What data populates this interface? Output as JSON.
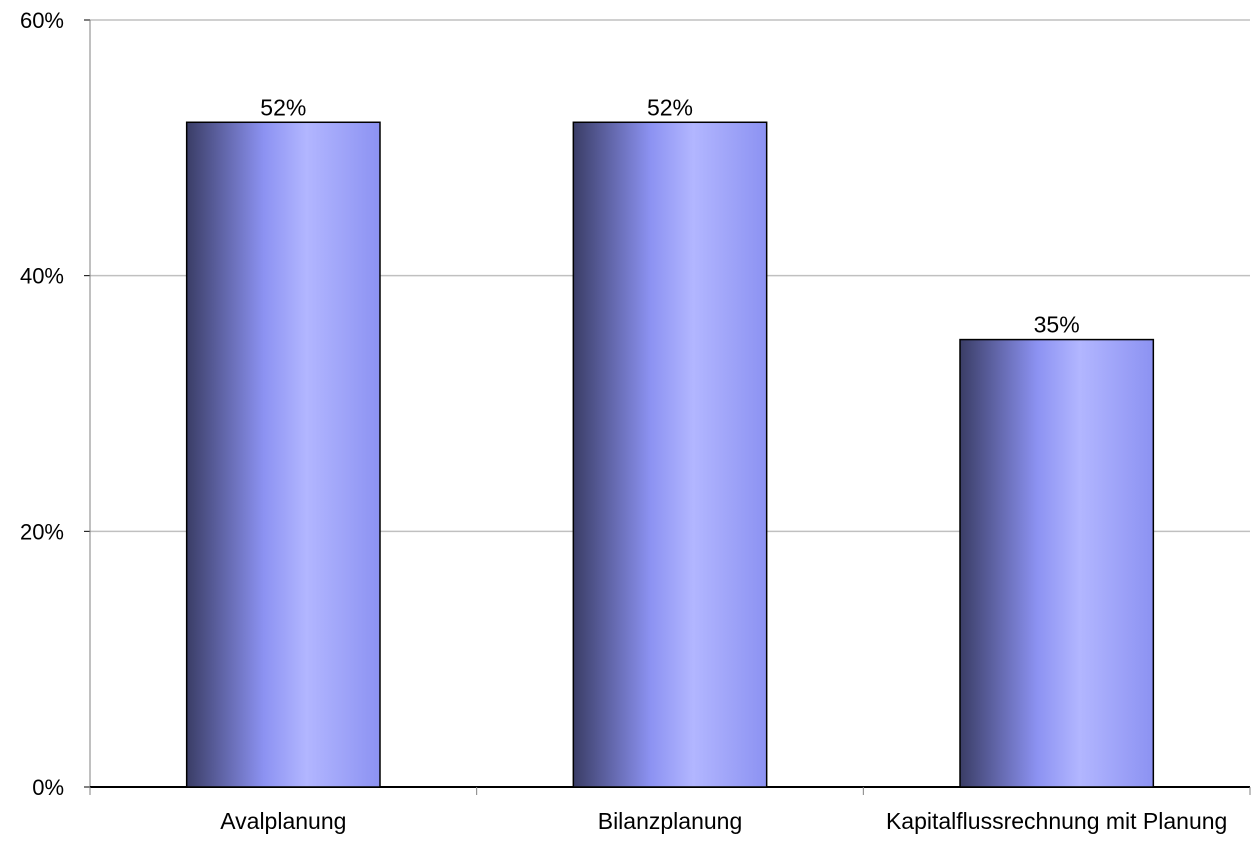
{
  "chart_data": {
    "type": "bar",
    "categories": [
      "Avalplanung",
      "Bilanzplanung",
      "Kapitalflussrechnung mit Planung"
    ],
    "values": [
      52,
      52,
      35
    ],
    "data_labels": [
      "52%",
      "52%",
      "35%"
    ],
    "title": "",
    "xlabel": "",
    "ylabel": "",
    "ylim": [
      0,
      60
    ],
    "yticks": [
      0,
      20,
      40,
      60
    ],
    "ytick_labels": [
      "0%",
      "20%",
      "40%",
      "60%"
    ],
    "grid": true,
    "legend": "none",
    "colors": {
      "bar_dark": "#3a3d66",
      "bar_mid": "#8c92f2",
      "bar_light": "#b2b6ff",
      "grid": "#c0c0c0",
      "axis": "#000000"
    }
  }
}
